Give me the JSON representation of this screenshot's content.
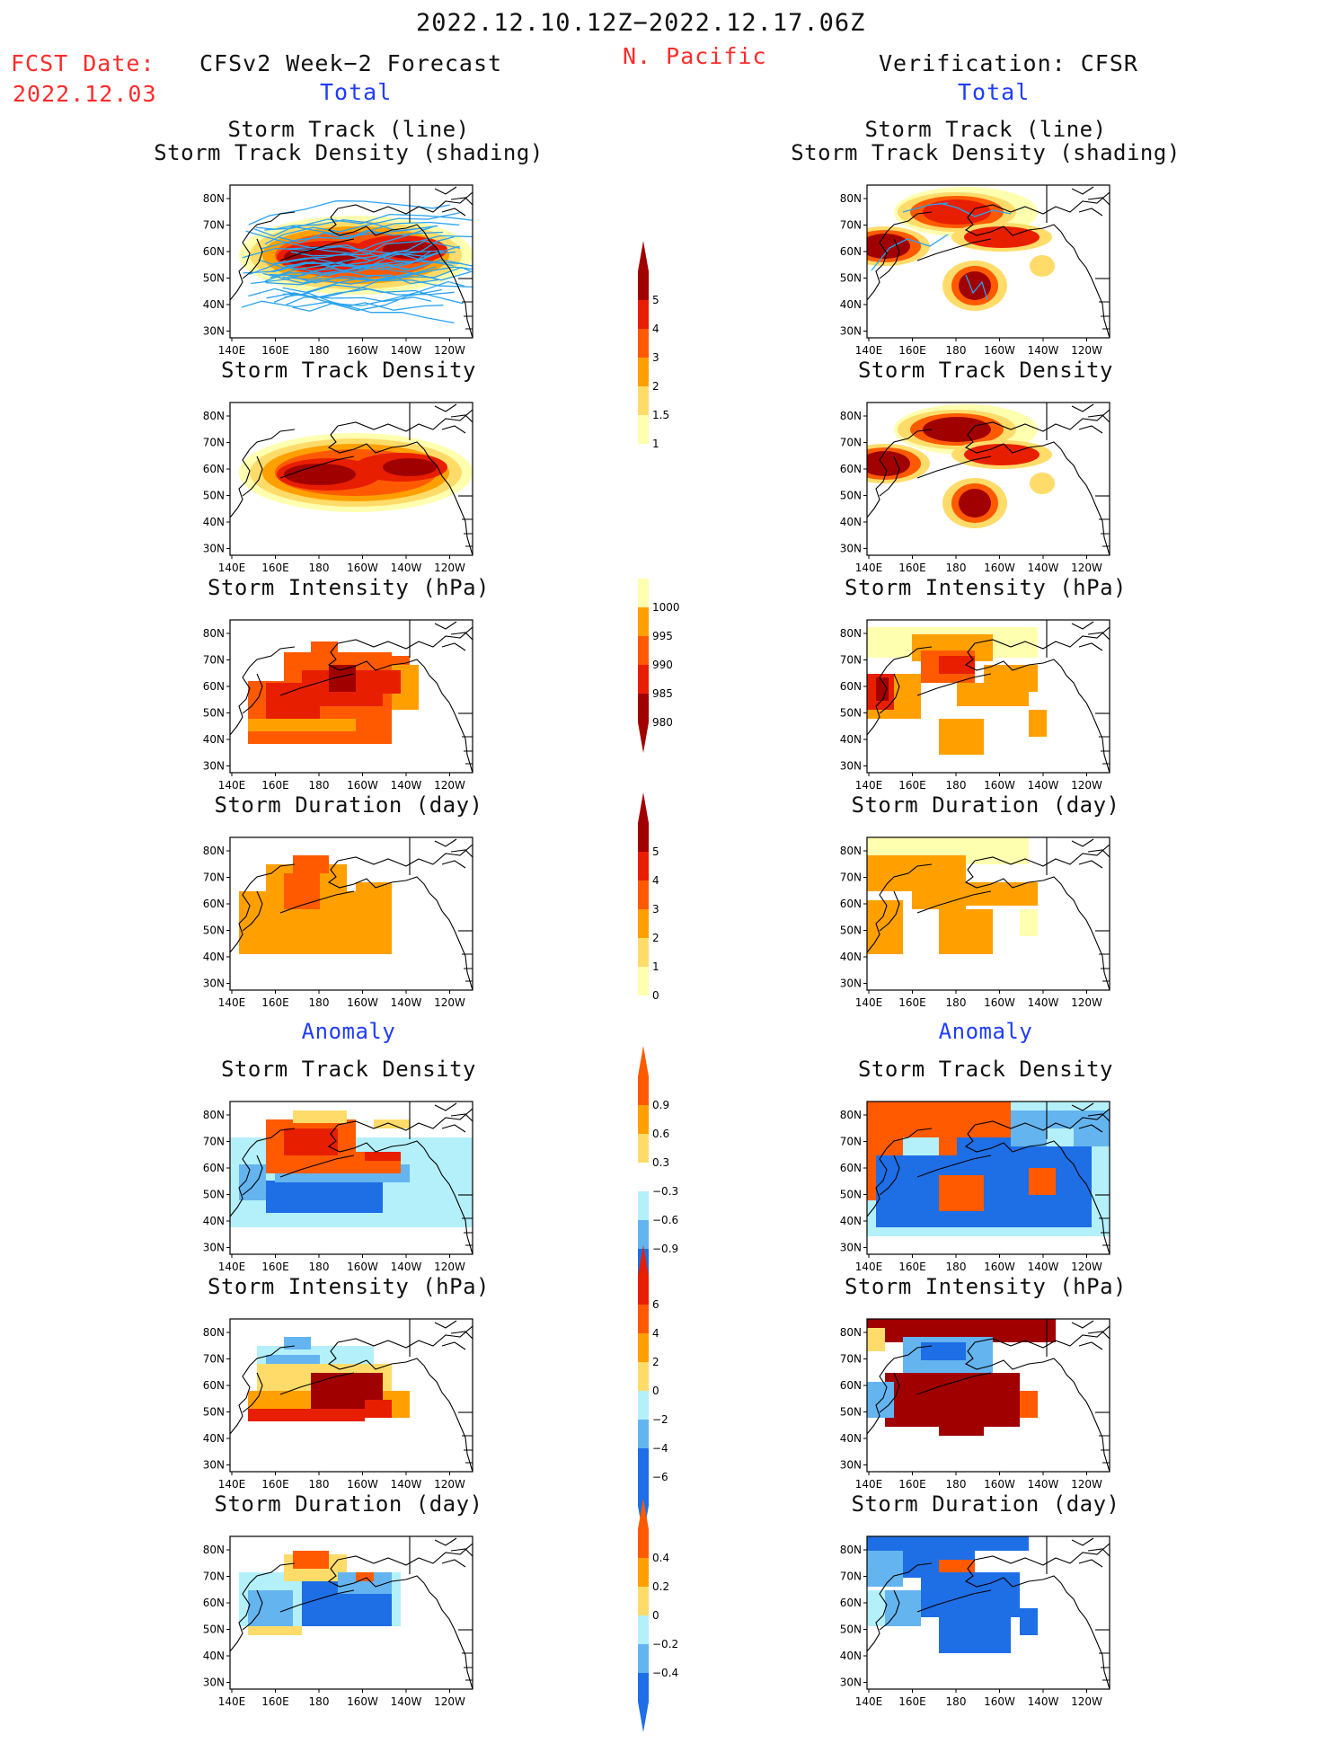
{
  "header": {
    "period": "2022.12.10.12Z−2022.12.17.06Z",
    "fcst_label": "FCST Date:",
    "fcst_date": "2022.12.03",
    "forecast_title": "CFSv2 Week−2 Forecast",
    "region": "N. Pacific",
    "verification_title": "Verification: CFSR",
    "total_left": "Total",
    "total_right": "Total"
  },
  "sections": {
    "anomaly_left": "Anomaly",
    "anomaly_right": "Anomaly"
  },
  "panel_titles": {
    "track_line": "Storm Track (line)",
    "track_density_shading": "Storm Track Density (shading)",
    "density": "Storm Track Density",
    "intensity": "Storm Intensity (hPa)",
    "duration": "Storm Duration (day)"
  },
  "axes": {
    "lat_labels": [
      "80N",
      "70N",
      "60N",
      "50N",
      "40N",
      "30N"
    ],
    "lon_labels": [
      "140E",
      "160E",
      "180",
      "160W",
      "140W",
      "120W"
    ]
  },
  "colorbars": {
    "total_density": [
      "5",
      "4",
      "3",
      "2",
      "1.5",
      "1"
    ],
    "total_intensity": [
      "1000",
      "995",
      "990",
      "985",
      "980"
    ],
    "total_duration": [
      "5",
      "4",
      "3",
      "2",
      "1",
      "0"
    ],
    "anom_density": [
      "0.9",
      "0.6",
      "0.3",
      "−0.3",
      "−0.6",
      "−0.9"
    ],
    "anom_intensity": [
      "6",
      "4",
      "2",
      "0",
      "−2",
      "−4",
      "−6"
    ],
    "anom_duration": [
      "0.4",
      "0.2",
      "0",
      "−0.2",
      "−0.4"
    ]
  },
  "palette": {
    "light_yellow": "#ffffb0",
    "yellow": "#ffdc6a",
    "orange": "#ffa000",
    "red_orange": "#ff5a00",
    "red": "#e81e00",
    "dark_red": "#a00000",
    "light_blue": "#b4f0fa",
    "mid_blue": "#64b4f0",
    "blue": "#1e6ee6",
    "track_line": "#29a3f0"
  }
}
